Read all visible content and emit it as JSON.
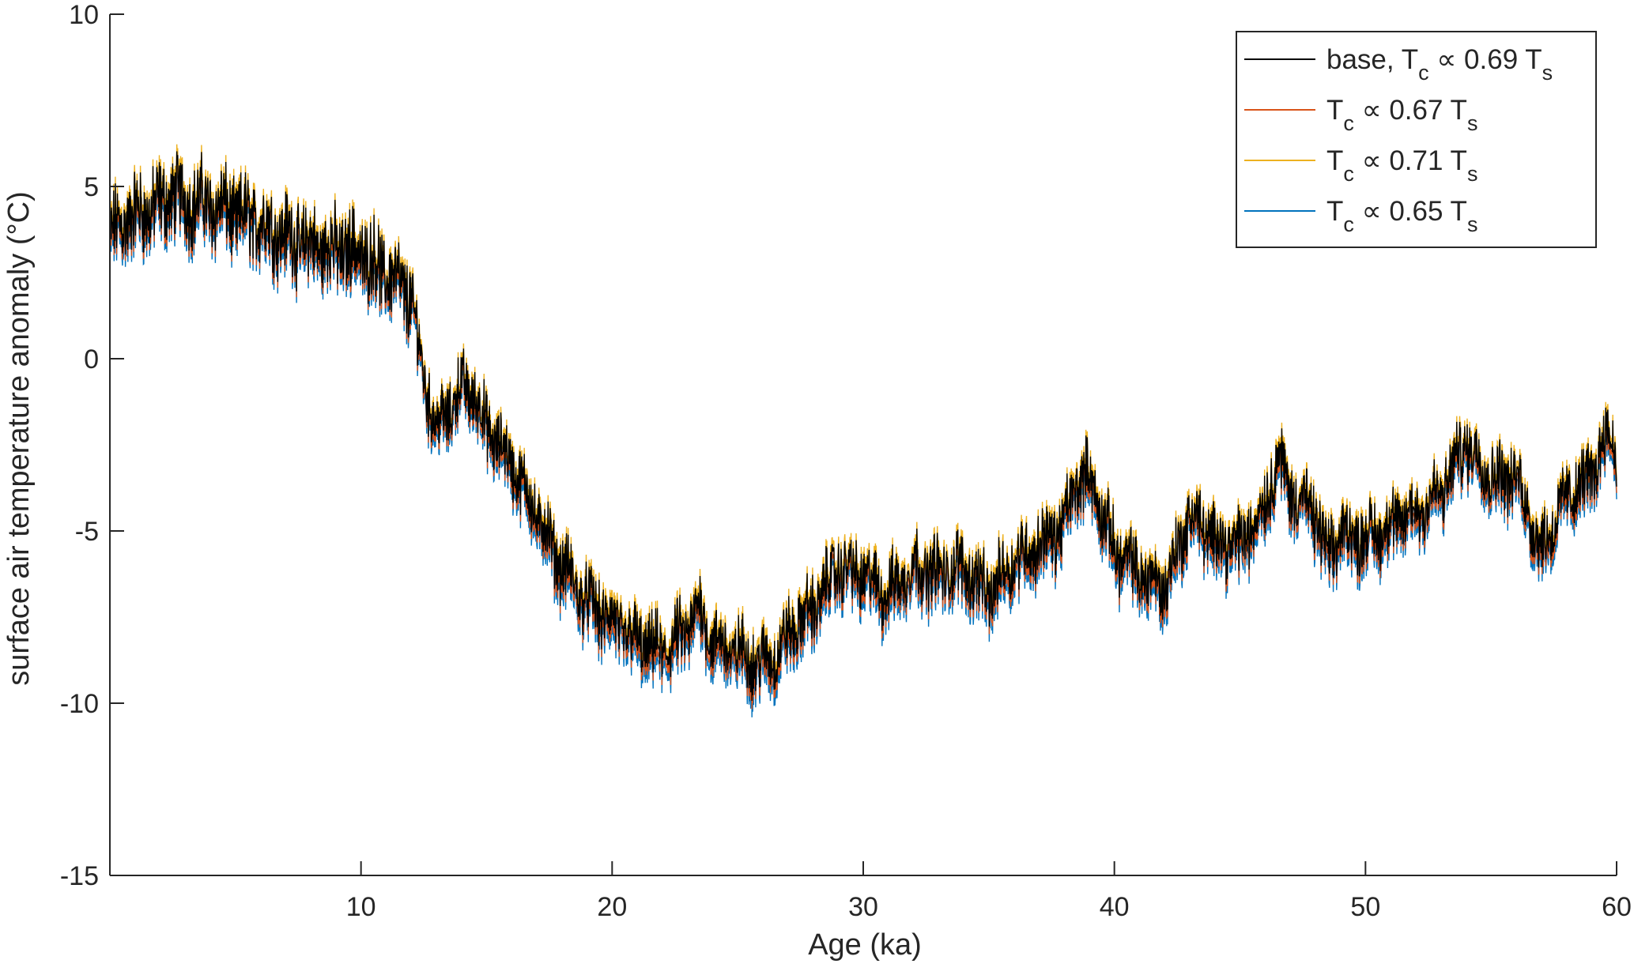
{
  "chart_data": {
    "type": "line",
    "xlabel": "Age (ka)",
    "ylabel": "surface air temperature anomaly (°C)",
    "xlim": [
      0,
      60
    ],
    "ylim": [
      -15,
      10
    ],
    "xticks": [
      10,
      20,
      30,
      40,
      50,
      60
    ],
    "yticks": [
      10,
      5,
      0,
      -5,
      -10,
      -15
    ],
    "grid": false,
    "legend_position": "top-right",
    "series": [
      {
        "name": "base, Tc ∝ 0.69 Ts",
        "legend": {
          "main": "base, T",
          "sub1": "c",
          "mid": " ∝ 0.69 T",
          "sub2": "s"
        },
        "color": "#000000",
        "offset": 0
      },
      {
        "name": "Tc ∝ 0.67 Ts",
        "legend": {
          "main": "T",
          "sub1": "c",
          "mid": " ∝ 0.67 T",
          "sub2": "s"
        },
        "color": "#d95319",
        "offset": -0.15
      },
      {
        "name": "Tc ∝ 0.71 Ts",
        "legend": {
          "main": "T",
          "sub1": "c",
          "mid": " ∝ 0.71 T",
          "sub2": "s"
        },
        "color": "#edb120",
        "offset": 0.15
      },
      {
        "name": "Tc ∝ 0.65 Ts",
        "legend": {
          "main": "T",
          "sub1": "c",
          "mid": " ∝ 0.65 T",
          "sub2": "s"
        },
        "color": "#0072bd",
        "offset": -0.3
      }
    ],
    "base_trend": {
      "x": [
        0,
        0.5,
        1,
        1.5,
        2,
        2.5,
        3,
        4,
        5,
        6,
        7,
        8,
        9,
        10,
        11,
        11.5,
        12,
        12.5,
        13,
        13.5,
        14,
        14.5,
        15,
        16,
        17,
        18,
        19,
        20,
        21,
        22,
        22.5,
        23,
        23.5,
        24,
        25,
        26,
        26.5,
        27,
        28,
        29,
        30,
        31,
        32,
        33,
        34,
        35,
        36,
        37,
        38,
        38.5,
        39,
        40,
        41,
        42,
        43,
        44,
        45,
        46,
        46.5,
        47,
        48,
        48.5,
        49,
        50,
        51,
        52,
        53,
        54,
        55,
        56,
        57,
        58,
        59,
        59.5,
        60
      ],
      "y": [
        3.5,
        4,
        4.2,
        4.3,
        4.5,
        4.8,
        4.6,
        4.5,
        4.2,
        4,
        3.6,
        3.3,
        3.2,
        3.1,
        2.5,
        2.2,
        1.8,
        -0.5,
        -2,
        -1.5,
        -0.8,
        -1,
        -2,
        -3,
        -4.5,
        -6,
        -7,
        -7.6,
        -8.2,
        -8.5,
        -8.2,
        -7.8,
        -7.2,
        -8.2,
        -8.5,
        -8.8,
        -8.6,
        -8.0,
        -7.2,
        -6.0,
        -6.3,
        -6.8,
        -6.0,
        -6.2,
        -6.0,
        -6.8,
        -5.8,
        -5.4,
        -4.8,
        -3.5,
        -3.4,
        -5.5,
        -6.2,
        -6.6,
        -4.5,
        -5.2,
        -5.4,
        -4.2,
        -2.8,
        -3.8,
        -4.5,
        -5.8,
        -5.0,
        -5.2,
        -4.8,
        -4.4,
        -3.9,
        -2.4,
        -3.4,
        -3.4,
        -5.5,
        -4.0,
        -3.4,
        -2.2,
        -2.6
      ]
    },
    "noise_amplitude": 1.4
  }
}
